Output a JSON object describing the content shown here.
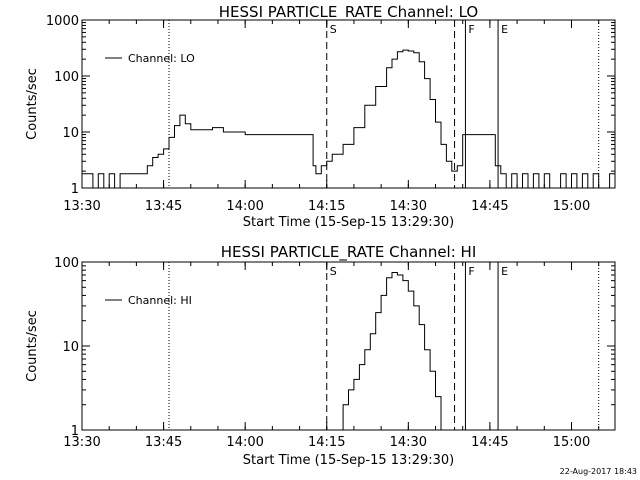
{
  "chart_data": [
    {
      "type": "line",
      "title": "HESSI PARTICLE_RATE Channel: LO",
      "xlabel": "Start Time (15-Sep-15 13:29:30)",
      "ylabel": "Counts/sec",
      "y_scale": "log",
      "ylim": [
        1,
        1000
      ],
      "xlim": [
        "13:30",
        "15:08"
      ],
      "x_ticks": [
        "13:30",
        "13:45",
        "14:00",
        "14:15",
        "14:30",
        "14:45",
        "15:00"
      ],
      "y_ticks": [
        "1",
        "10",
        "100",
        "1000"
      ],
      "legend": "top-left",
      "series": [
        {
          "name": "Channel: LO",
          "x": [
            "13:30",
            "13:31",
            "13:32",
            "13:33",
            "13:34",
            "13:35",
            "13:36",
            "13:37",
            "13:38",
            "13:39",
            "13:40",
            "13:41",
            "13:42",
            "13:43",
            "13:44",
            "13:45",
            "13:46",
            "13:47",
            "13:48",
            "13:49",
            "13:50",
            "13:52",
            "13:54",
            "13:56",
            "13:58",
            "14:00",
            "14:02",
            "14:04",
            "14:06",
            "14:08",
            "14:10",
            "14:12",
            "14:12.5",
            "14:13",
            "14:14",
            "14:15",
            "14:16",
            "14:18",
            "14:20",
            "14:22",
            "14:24",
            "14:26",
            "14:27",
            "14:28",
            "14:29",
            "14:30",
            "14:31",
            "14:32",
            "14:33",
            "14:34",
            "14:35",
            "14:36",
            "14:37",
            "14:38",
            "14:39",
            "14:40",
            "14:41",
            "14:42",
            "14:43",
            "14:44",
            "14:45",
            "14:46",
            "14:47",
            "14:48",
            "14:49",
            "14:50",
            "14:51",
            "14:52",
            "14:53",
            "14:54",
            "14:55",
            "14:56",
            "14:57",
            "14:58",
            "14:59",
            "15:00",
            "15:01",
            "15:02",
            "15:03",
            "15:04",
            "15:05",
            "15:06",
            "15:07",
            "15:08"
          ],
          "values": [
            1.8,
            1.8,
            1,
            1.8,
            1,
            1.8,
            1,
            1.8,
            1.8,
            1.8,
            1.8,
            1.8,
            2.5,
            3.5,
            4,
            5,
            8,
            13,
            20,
            14,
            11,
            11,
            12,
            10,
            10,
            9,
            9,
            9,
            9,
            9,
            9,
            9,
            2.5,
            1.8,
            2.5,
            3,
            4,
            6,
            12,
            30,
            65,
            140,
            200,
            270,
            290,
            280,
            260,
            180,
            90,
            38,
            15,
            6,
            3,
            2,
            2.5,
            9,
            9,
            9,
            9,
            9,
            9,
            2.5,
            1.8,
            1,
            1.8,
            1,
            1.8,
            1,
            1.8,
            1,
            1.8,
            1,
            1,
            1.8,
            1,
            1.8,
            1,
            1.8,
            1,
            1.8,
            1,
            1,
            1.8,
            1.8
          ]
        }
      ],
      "markers": [
        {
          "label": "S",
          "time": "14:15",
          "style": "dashed"
        },
        {
          "label": "",
          "time": "14:38.5",
          "style": "dashed"
        },
        {
          "label": "F",
          "time": "14:40.5",
          "style": "solid"
        },
        {
          "label": "E",
          "time": "14:46.5",
          "style": "solid"
        },
        {
          "label": "",
          "time": "13:46",
          "style": "dotted"
        },
        {
          "label": "",
          "time": "15:05",
          "style": "dotted"
        }
      ]
    },
    {
      "type": "line",
      "title": "HESSI PARTICLE_RATE Channel: HI",
      "xlabel": "Start Time (15-Sep-15 13:29:30)",
      "ylabel": "Counts/sec",
      "y_scale": "log",
      "ylim": [
        1,
        100
      ],
      "xlim": [
        "13:30",
        "15:08"
      ],
      "x_ticks": [
        "13:30",
        "13:45",
        "14:00",
        "14:15",
        "14:30",
        "14:45",
        "15:00"
      ],
      "y_ticks": [
        "1",
        "10",
        "100"
      ],
      "legend": "top-left",
      "series": [
        {
          "name": "Channel: HI",
          "x": [
            "14:17",
            "14:18",
            "14:19",
            "14:20",
            "14:21",
            "14:22",
            "14:23",
            "14:24",
            "14:25",
            "14:26",
            "14:27",
            "14:28",
            "14:29",
            "14:30",
            "14:31",
            "14:32",
            "14:33",
            "14:34",
            "14:35",
            "14:36"
          ],
          "values": [
            1,
            2,
            3,
            4,
            6,
            9,
            14,
            25,
            40,
            65,
            75,
            70,
            60,
            45,
            30,
            18,
            9,
            5,
            2.5,
            1
          ]
        }
      ],
      "markers": [
        {
          "label": "S",
          "time": "14:15",
          "style": "dashed"
        },
        {
          "label": "",
          "time": "14:38.5",
          "style": "dashed"
        },
        {
          "label": "F",
          "time": "14:40.5",
          "style": "solid"
        },
        {
          "label": "E",
          "time": "14:46.5",
          "style": "solid"
        },
        {
          "label": "",
          "time": "13:46",
          "style": "dotted"
        },
        {
          "label": "",
          "time": "15:05",
          "style": "dotted"
        }
      ]
    }
  ],
  "footer": {
    "timestamp": "22-Aug-2017 18:43"
  }
}
